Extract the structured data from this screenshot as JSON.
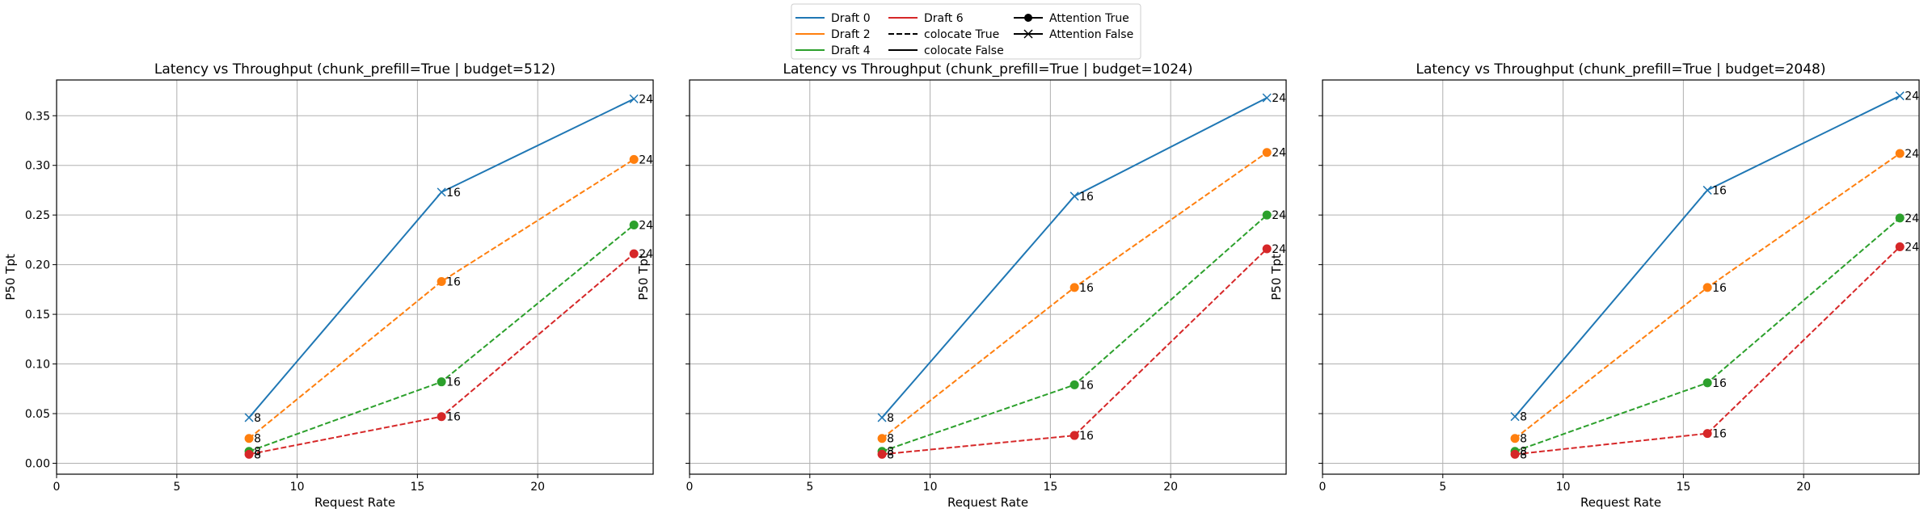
{
  "legend": {
    "entries": [
      {
        "label": "Draft 0",
        "color": "#1f77b4",
        "style": "solid",
        "marker": "none"
      },
      {
        "label": "Draft 2",
        "color": "#ff7f0e",
        "style": "solid",
        "marker": "none"
      },
      {
        "label": "Draft 4",
        "color": "#2ca02c",
        "style": "solid",
        "marker": "none"
      },
      {
        "label": "Draft 6",
        "color": "#d62728",
        "style": "solid",
        "marker": "none"
      },
      {
        "label": "colocate True",
        "color": "#000000",
        "style": "dashed",
        "marker": "none"
      },
      {
        "label": "colocate False",
        "color": "#000000",
        "style": "solid",
        "marker": "none"
      },
      {
        "label": "Attention True",
        "color": "#000000",
        "style": "solid",
        "marker": "circle"
      },
      {
        "label": "Attention False",
        "color": "#000000",
        "style": "solid",
        "marker": "x"
      }
    ],
    "placement": "top-center"
  },
  "chart_data": [
    {
      "type": "line",
      "title": "Latency vs Throughput (chunk_prefill=True | budget=512)",
      "xlabel": "Request Rate",
      "ylabel": "P50 Tpt",
      "xlim": [
        0,
        24.8
      ],
      "ylim": [
        -0.011,
        0.386
      ],
      "xticks": [
        0,
        5,
        10,
        15,
        20
      ],
      "yticks": [
        0.0,
        0.05,
        0.1,
        0.15,
        0.2,
        0.25,
        0.3,
        0.35
      ],
      "grid": true,
      "series": [
        {
          "name": "Draft 0",
          "color": "#1f77b4",
          "style": "solid",
          "marker": "x",
          "x": [
            8,
            16,
            24
          ],
          "y": [
            0.046,
            0.273,
            0.367
          ],
          "labels": [
            "8",
            "16",
            "24"
          ]
        },
        {
          "name": "Draft 2",
          "color": "#ff7f0e",
          "style": "dashed",
          "marker": "circle",
          "x": [
            8,
            16,
            24
          ],
          "y": [
            0.025,
            0.183,
            0.306
          ],
          "labels": [
            "8",
            "16",
            "24"
          ]
        },
        {
          "name": "Draft 4",
          "color": "#2ca02c",
          "style": "dashed",
          "marker": "circle",
          "x": [
            8,
            16,
            24
          ],
          "y": [
            0.012,
            0.082,
            0.24
          ],
          "labels": [
            "8",
            "16",
            "24"
          ]
        },
        {
          "name": "Draft 6",
          "color": "#d62728",
          "style": "dashed",
          "marker": "circle",
          "x": [
            8,
            16,
            24
          ],
          "y": [
            0.009,
            0.047,
            0.211
          ],
          "labels": [
            "8",
            "16",
            "24"
          ]
        }
      ]
    },
    {
      "type": "line",
      "title": "Latency vs Throughput (chunk_prefill=True | budget=1024)",
      "xlabel": "Request Rate",
      "ylabel": "P50 Tpt",
      "xlim": [
        0,
        24.8
      ],
      "ylim": [
        -0.011,
        0.386
      ],
      "xticks": [
        0,
        5,
        10,
        15,
        20
      ],
      "yticks": [
        0.0,
        0.05,
        0.1,
        0.15,
        0.2,
        0.25,
        0.3,
        0.35
      ],
      "grid": true,
      "series": [
        {
          "name": "Draft 0",
          "color": "#1f77b4",
          "style": "solid",
          "marker": "x",
          "x": [
            8,
            16,
            24
          ],
          "y": [
            0.046,
            0.269,
            0.368
          ],
          "labels": [
            "8",
            "16",
            "24"
          ]
        },
        {
          "name": "Draft 2",
          "color": "#ff7f0e",
          "style": "dashed",
          "marker": "circle",
          "x": [
            8,
            16,
            24
          ],
          "y": [
            0.025,
            0.177,
            0.313
          ],
          "labels": [
            "8",
            "16",
            "24"
          ]
        },
        {
          "name": "Draft 4",
          "color": "#2ca02c",
          "style": "dashed",
          "marker": "circle",
          "x": [
            8,
            16,
            24
          ],
          "y": [
            0.012,
            0.079,
            0.25
          ],
          "labels": [
            "8",
            "16",
            "24"
          ]
        },
        {
          "name": "Draft 6",
          "color": "#d62728",
          "style": "dashed",
          "marker": "circle",
          "x": [
            8,
            16,
            24
          ],
          "y": [
            0.009,
            0.028,
            0.216
          ],
          "labels": [
            "8",
            "16",
            "24"
          ]
        }
      ]
    },
    {
      "type": "line",
      "title": "Latency vs Throughput (chunk_prefill=True | budget=2048)",
      "xlabel": "Request Rate",
      "ylabel": "P50 Tpt",
      "xlim": [
        0,
        24.8
      ],
      "ylim": [
        -0.011,
        0.386
      ],
      "xticks": [
        0,
        5,
        10,
        15,
        20
      ],
      "yticks": [
        0.0,
        0.05,
        0.1,
        0.15,
        0.2,
        0.25,
        0.3,
        0.35
      ],
      "grid": true,
      "series": [
        {
          "name": "Draft 0",
          "color": "#1f77b4",
          "style": "solid",
          "marker": "x",
          "x": [
            8,
            16,
            24
          ],
          "y": [
            0.047,
            0.275,
            0.37
          ],
          "labels": [
            "8",
            "16",
            "24"
          ]
        },
        {
          "name": "Draft 2",
          "color": "#ff7f0e",
          "style": "dashed",
          "marker": "circle",
          "x": [
            8,
            16,
            24
          ],
          "y": [
            0.025,
            0.177,
            0.312
          ],
          "labels": [
            "8",
            "16",
            "24"
          ]
        },
        {
          "name": "Draft 4",
          "color": "#2ca02c",
          "style": "dashed",
          "marker": "circle",
          "x": [
            8,
            16,
            24
          ],
          "y": [
            0.012,
            0.081,
            0.247
          ],
          "labels": [
            "8",
            "16",
            "24"
          ]
        },
        {
          "name": "Draft 6",
          "color": "#d62728",
          "style": "dashed",
          "marker": "circle",
          "x": [
            8,
            16,
            24
          ],
          "y": [
            0.009,
            0.03,
            0.218
          ],
          "labels": [
            "8",
            "16",
            "24"
          ]
        }
      ]
    }
  ]
}
